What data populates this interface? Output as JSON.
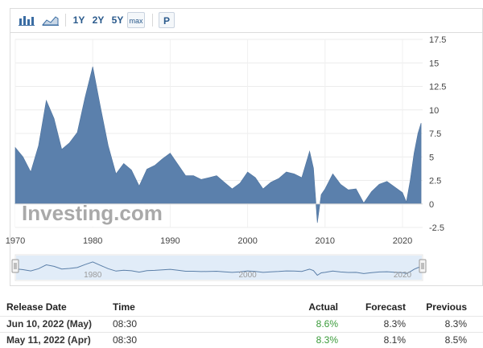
{
  "toolbar": {
    "icons": [
      "bar-chart-icon",
      "area-chart-icon"
    ],
    "ranges": [
      "1Y",
      "2Y",
      "5Y",
      "max"
    ],
    "p_label": "P"
  },
  "chart_data": {
    "type": "area",
    "color": "#5b80ac",
    "ylim": [
      -2.5,
      17.5
    ],
    "yticks": [
      "17.5",
      "15",
      "12.5",
      "10",
      "7.5",
      "5",
      "2.5",
      "0",
      "-2.5"
    ],
    "xticks": [
      "1970",
      "1980",
      "1990",
      "2000",
      "2010",
      "2020"
    ],
    "watermark": "Investing.com",
    "navigator_labels": [
      "1980",
      "2000",
      "2020"
    ],
    "x": [
      1970.0,
      1971.0,
      1972.0,
      1973.0,
      1974.0,
      1975.0,
      1976.0,
      1977.0,
      1978.0,
      1979.0,
      1980.0,
      1981.0,
      1982.0,
      1983.0,
      1984.0,
      1985.0,
      1986.0,
      1987.0,
      1988.0,
      1989.0,
      1990.0,
      1991.0,
      1992.0,
      1993.0,
      1994.0,
      1995.0,
      1996.0,
      1997.0,
      1998.0,
      1999.0,
      2000.0,
      2001.0,
      2002.0,
      2003.0,
      2004.0,
      2005.0,
      2006.0,
      2007.0,
      2008.0,
      2008.5,
      2009.0,
      2009.5,
      2010.0,
      2011.0,
      2012.0,
      2013.0,
      2014.0,
      2015.0,
      2016.0,
      2017.0,
      2018.0,
      2019.0,
      2020.0,
      2020.5,
      2021.0,
      2021.5,
      2022.0,
      2022.4
    ],
    "values": [
      6.0,
      5.0,
      3.4,
      6.2,
      11.0,
      9.1,
      5.8,
      6.5,
      7.6,
      11.3,
      14.6,
      10.3,
      6.2,
      3.2,
      4.3,
      3.6,
      1.9,
      3.7,
      4.1,
      4.8,
      5.4,
      4.2,
      3.0,
      3.0,
      2.6,
      2.8,
      3.0,
      2.3,
      1.6,
      2.2,
      3.4,
      2.8,
      1.6,
      2.3,
      2.7,
      3.4,
      3.2,
      2.8,
      5.6,
      3.8,
      -2.0,
      1.0,
      1.6,
      3.2,
      2.1,
      1.5,
      1.6,
      0.1,
      1.3,
      2.1,
      2.4,
      1.8,
      1.2,
      0.2,
      2.5,
      5.4,
      7.5,
      8.6
    ]
  },
  "table": {
    "headers": [
      "Release Date",
      "Time",
      "Actual",
      "Forecast",
      "Previous"
    ],
    "rows": [
      [
        "Jun 10, 2022 (May)",
        "08:30",
        "8.6%",
        "8.3%",
        "8.3%"
      ],
      [
        "May 11, 2022 (Apr)",
        "08:30",
        "8.3%",
        "8.1%",
        "8.5%"
      ]
    ]
  }
}
